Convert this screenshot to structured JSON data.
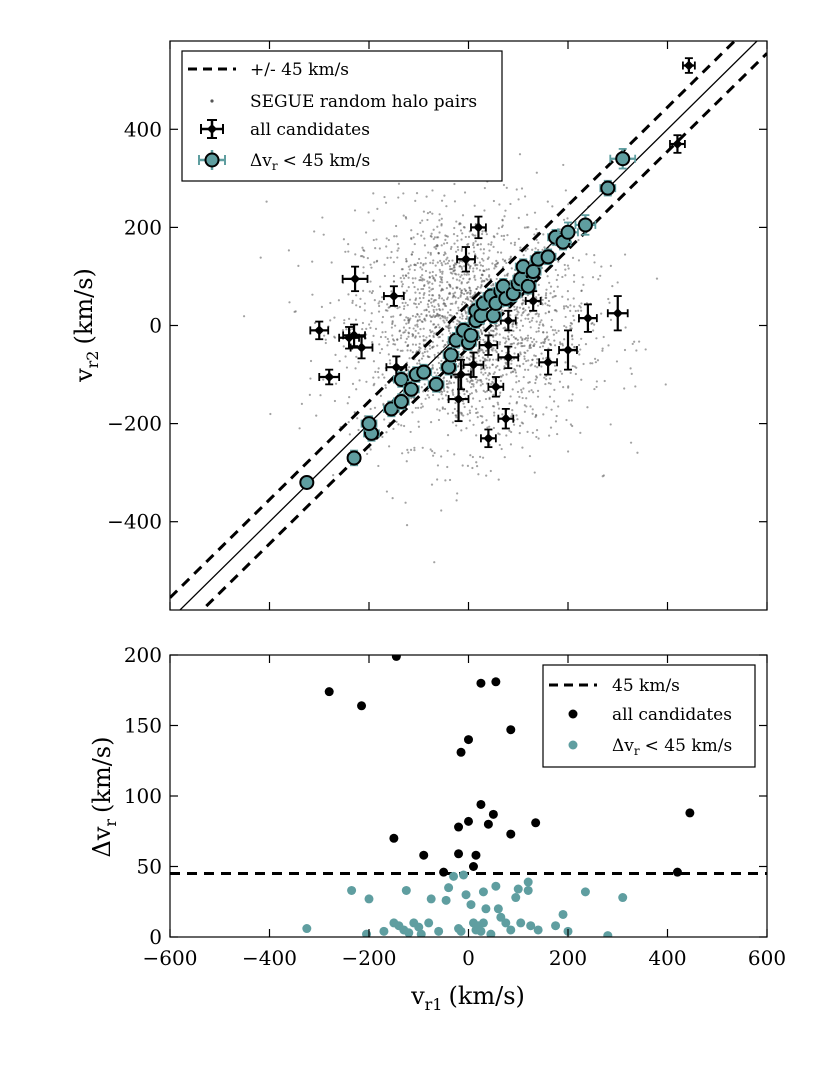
{
  "chart_data": [
    {
      "type": "scatter",
      "panel": "top",
      "xlim": [
        -600,
        600
      ],
      "ylim": [
        -580,
        580
      ],
      "ylabel_main": "v",
      "ylabel_sub": "r2",
      "ylabel_unit": "(km/s)",
      "yticks": [
        -400,
        -200,
        0,
        200,
        400
      ],
      "ytick_labels": [
        "−400",
        "−200",
        "0",
        "200",
        "400"
      ],
      "reference_lines": [
        {
          "slope": 1,
          "intercept": 0,
          "style": "solid"
        },
        {
          "slope": 1,
          "intercept": 45,
          "style": "dashed"
        },
        {
          "slope": 1,
          "intercept": -45,
          "style": "dashed"
        }
      ],
      "legend": {
        "placement": "top-left",
        "entries": [
          "+/- 45 km/s",
          "SEGUE random halo pairs",
          "all candidates",
          "Δv",
          "r",
          "< 45 km/s"
        ]
      },
      "background_cloud": {
        "name": "SEGUE random halo pairs",
        "count": 2200,
        "center": [
          0,
          0
        ],
        "spread": [
          120,
          120
        ],
        "color": "#555555"
      },
      "series": [
        {
          "name": "all candidates",
          "color": "#000000",
          "points": [
            [
              443,
              530
            ],
            [
              420,
              370
            ],
            [
              -228,
              95
            ],
            [
              -150,
              60
            ],
            [
              -300,
              -10
            ],
            [
              -230,
              -20
            ],
            [
              -240,
              -25
            ],
            [
              -215,
              -45
            ],
            [
              -280,
              -105
            ],
            [
              -145,
              -85
            ],
            [
              20,
              200
            ],
            [
              -5,
              135
            ],
            [
              80,
              10
            ],
            [
              130,
              50
            ],
            [
              80,
              -65
            ],
            [
              40,
              -40
            ],
            [
              10,
              -80
            ],
            [
              -15,
              -100
            ],
            [
              -20,
              -150
            ],
            [
              40,
              -230
            ],
            [
              75,
              -190
            ],
            [
              55,
              -125
            ],
            [
              160,
              -75
            ],
            [
              200,
              -50
            ],
            [
              240,
              15
            ],
            [
              300,
              25
            ]
          ],
          "xerr": [
            12,
            15,
            25,
            20,
            18,
            22,
            20,
            22,
            20,
            20,
            15,
            18,
            15,
            15,
            20,
            18,
            20,
            20,
            20,
            15,
            15,
            15,
            18,
            18,
            18,
            20
          ],
          "yerr": [
            15,
            18,
            25,
            20,
            18,
            22,
            22,
            22,
            15,
            22,
            22,
            25,
            20,
            20,
            22,
            20,
            25,
            30,
            45,
            18,
            20,
            20,
            25,
            40,
            28,
            35
          ]
        },
        {
          "name": "Δvr < 45 km/s",
          "color": "#5f9ea0",
          "points": [
            [
              -325,
              -320
            ],
            [
              -230,
              -270
            ],
            [
              -195,
              -220
            ],
            [
              -200,
              -200
            ],
            [
              -155,
              -170
            ],
            [
              -135,
              -155
            ],
            [
              -135,
              -110
            ],
            [
              -115,
              -130
            ],
            [
              -105,
              -100
            ],
            [
              -90,
              -95
            ],
            [
              -65,
              -120
            ],
            [
              -40,
              -85
            ],
            [
              -35,
              -60
            ],
            [
              -25,
              -30
            ],
            [
              -10,
              -10
            ],
            [
              0,
              -35
            ],
            [
              5,
              -20
            ],
            [
              15,
              10
            ],
            [
              15,
              30
            ],
            [
              25,
              20
            ],
            [
              30,
              45
            ],
            [
              45,
              60
            ],
            [
              50,
              20
            ],
            [
              55,
              45
            ],
            [
              65,
              70
            ],
            [
              70,
              80
            ],
            [
              75,
              55
            ],
            [
              90,
              65
            ],
            [
              100,
              85
            ],
            [
              105,
              95
            ],
            [
              110,
              120
            ],
            [
              120,
              80
            ],
            [
              130,
              110
            ],
            [
              140,
              135
            ],
            [
              160,
              140
            ],
            [
              175,
              180
            ],
            [
              190,
              170
            ],
            [
              200,
              190
            ],
            [
              235,
              205
            ],
            [
              280,
              280
            ],
            [
              310,
              340
            ]
          ],
          "xerr": [
            10,
            12,
            15,
            15,
            15,
            15,
            15,
            15,
            15,
            15,
            15,
            15,
            15,
            15,
            15,
            15,
            15,
            15,
            15,
            15,
            15,
            15,
            15,
            15,
            15,
            15,
            15,
            15,
            15,
            15,
            15,
            15,
            15,
            15,
            15,
            15,
            15,
            20,
            20,
            15,
            25
          ],
          "yerr": [
            10,
            15,
            15,
            15,
            15,
            15,
            15,
            15,
            15,
            15,
            15,
            15,
            15,
            15,
            15,
            15,
            15,
            15,
            15,
            15,
            15,
            15,
            15,
            15,
            15,
            15,
            15,
            15,
            15,
            15,
            15,
            15,
            15,
            15,
            15,
            15,
            15,
            20,
            20,
            15,
            20
          ]
        }
      ]
    },
    {
      "type": "scatter",
      "panel": "bottom",
      "xlim": [
        -600,
        600
      ],
      "ylim": [
        0,
        200
      ],
      "xlabel_main": "v",
      "xlabel_sub": "r1",
      "xlabel_unit": "(km/s)",
      "ylabel_main": "Δv",
      "ylabel_sub": "r",
      "ylabel_unit": "(km/s)",
      "xticks": [
        -600,
        -400,
        -200,
        0,
        200,
        400,
        600
      ],
      "xtick_labels": [
        "−600",
        "−400",
        "−200",
        "0",
        "200",
        "400",
        "600"
      ],
      "yticks": [
        0,
        50,
        100,
        150,
        200
      ],
      "ytick_labels": [
        "0",
        "50",
        "100",
        "150",
        "200"
      ],
      "threshold_line": {
        "y": 45,
        "style": "dashed"
      },
      "legend": {
        "placement": "top-right",
        "entries": [
          "45 km/s",
          "all candidates",
          "Δv",
          "r",
          "< 45 km/s"
        ]
      },
      "series": [
        {
          "name": "all candidates",
          "color": "#000000",
          "points": [
            [
              -145,
              199
            ],
            [
              -280,
              174
            ],
            [
              -215,
              164
            ],
            [
              25,
              180
            ],
            [
              55,
              181
            ],
            [
              0,
              140
            ],
            [
              -15,
              131
            ],
            [
              85,
              147
            ],
            [
              -150,
              70
            ],
            [
              -20,
              78
            ],
            [
              0,
              82
            ],
            [
              25,
              94
            ],
            [
              40,
              80
            ],
            [
              50,
              87
            ],
            [
              85,
              73
            ],
            [
              135,
              81
            ],
            [
              -90,
              58
            ],
            [
              -20,
              59
            ],
            [
              10,
              50
            ],
            [
              15,
              58
            ],
            [
              -50,
              46
            ],
            [
              420,
              46
            ],
            [
              445,
              88
            ]
          ]
        },
        {
          "name": "Δvr < 45 km/s",
          "color": "#5f9ea0",
          "points": [
            [
              -325,
              6
            ],
            [
              -235,
              33
            ],
            [
              -205,
              2
            ],
            [
              -200,
              27
            ],
            [
              -170,
              4
            ],
            [
              -150,
              10
            ],
            [
              -140,
              8
            ],
            [
              -130,
              5
            ],
            [
              -120,
              3
            ],
            [
              -125,
              33
            ],
            [
              -110,
              10
            ],
            [
              -100,
              7
            ],
            [
              -95,
              2
            ],
            [
              -80,
              10
            ],
            [
              -75,
              27
            ],
            [
              -60,
              4
            ],
            [
              -40,
              35
            ],
            [
              -45,
              26
            ],
            [
              -20,
              6
            ],
            [
              -15,
              4
            ],
            [
              -5,
              30
            ],
            [
              -30,
              43
            ],
            [
              -10,
              44
            ],
            [
              5,
              23
            ],
            [
              10,
              10
            ],
            [
              15,
              5
            ],
            [
              20,
              8
            ],
            [
              25,
              4
            ],
            [
              30,
              10
            ],
            [
              30,
              32
            ],
            [
              35,
              20
            ],
            [
              45,
              2
            ],
            [
              55,
              36
            ],
            [
              60,
              20
            ],
            [
              65,
              14
            ],
            [
              75,
              10
            ],
            [
              85,
              5
            ],
            [
              95,
              28
            ],
            [
              100,
              34
            ],
            [
              105,
              10
            ],
            [
              120,
              33
            ],
            [
              120,
              39
            ],
            [
              125,
              8
            ],
            [
              140,
              5
            ],
            [
              175,
              8
            ],
            [
              190,
              16
            ],
            [
              200,
              4
            ],
            [
              235,
              32
            ],
            [
              280,
              1
            ],
            [
              310,
              28
            ]
          ]
        }
      ]
    }
  ]
}
